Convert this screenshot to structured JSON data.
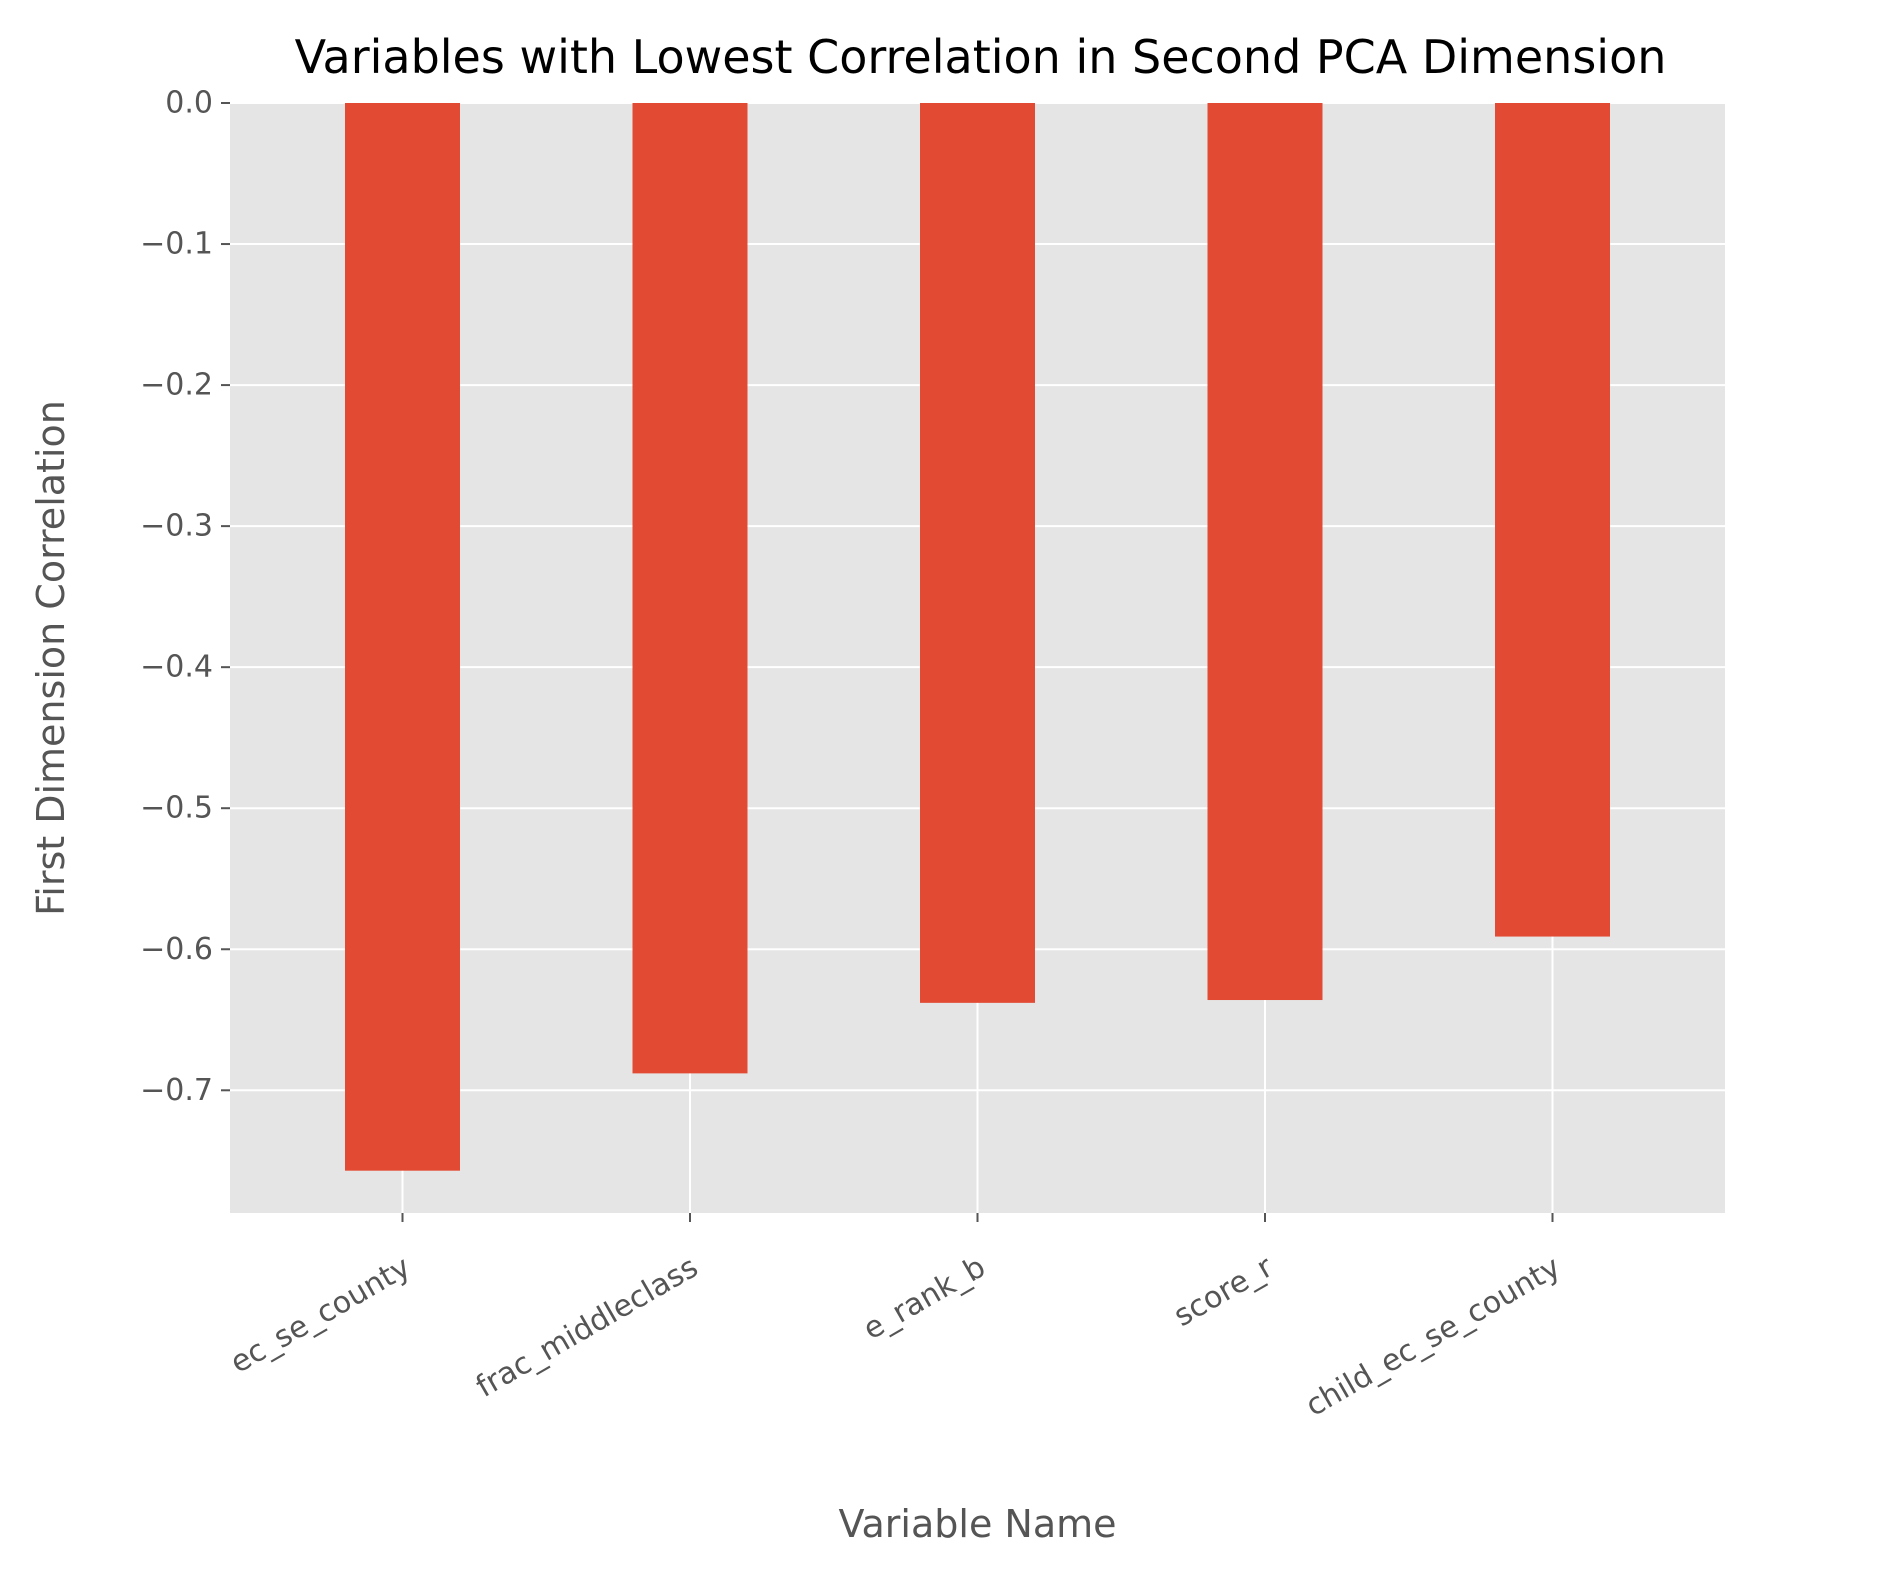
{
  "chart_data": {
    "type": "bar",
    "title": "Variables with Lowest Correlation in Second PCA Dimension",
    "xlabel": "Variable Name",
    "ylabel": "First Dimension Correlation",
    "categories": [
      "ec_se_county",
      "frac_middleclass",
      "e_rank_b",
      "score_r",
      "child_ec_se_county"
    ],
    "values": [
      -0.757,
      -0.688,
      -0.638,
      -0.636,
      -0.591
    ],
    "ylim": [
      -0.787,
      0.0
    ],
    "yticks": [
      0.0,
      -0.1,
      -0.2,
      -0.3,
      -0.4,
      -0.5,
      -0.6,
      -0.7
    ],
    "ytick_labels": [
      "0.0",
      "−0.1",
      "−0.2",
      "−0.3",
      "−0.4",
      "−0.5",
      "−0.6",
      "−0.7"
    ],
    "grid": true,
    "colors": {
      "bar": "#e24a33",
      "panel": "#e5e5e5",
      "grid": "#ffffff",
      "text": "#555555",
      "title": "#000000"
    }
  }
}
